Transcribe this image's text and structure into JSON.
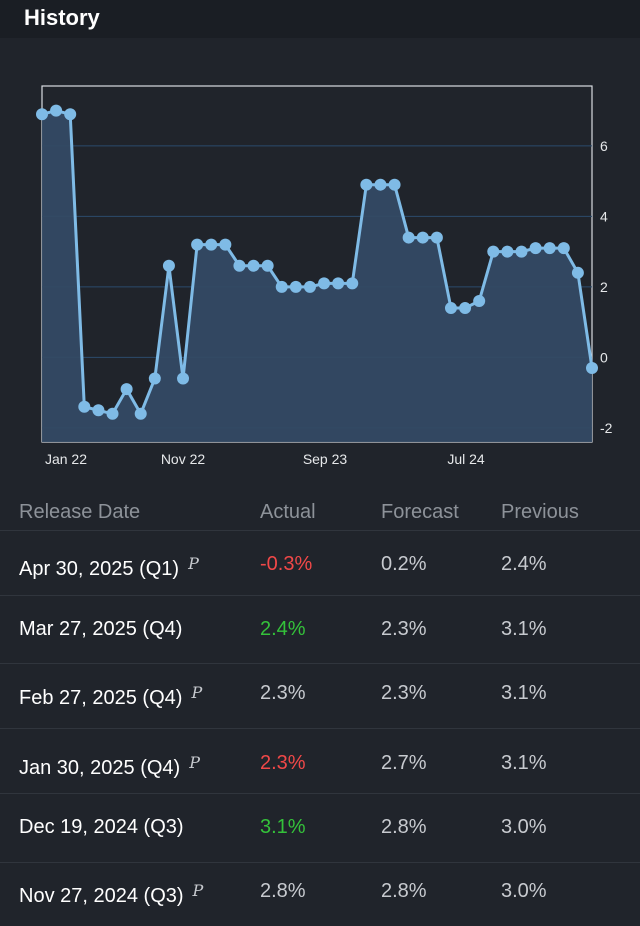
{
  "header": {
    "title": "History"
  },
  "colors": {
    "line": "#7fbbe6",
    "area": "#344a64",
    "grid": "#2b4b6c",
    "negative": "#f04848",
    "positive": "#34c23a"
  },
  "chart_data": {
    "type": "area",
    "y_ticks": [
      6,
      4,
      2,
      0,
      -2
    ],
    "x_labels": [
      "Jan 22",
      "Nov 22",
      "Sep 23",
      "Jul 24"
    ],
    "ylim": [
      -2.4,
      7.7
    ],
    "grid": true,
    "values": [
      6.9,
      7.0,
      6.9,
      -1.4,
      -1.5,
      -1.6,
      -0.9,
      -1.6,
      -0.6,
      2.6,
      -0.6,
      3.2,
      3.2,
      3.2,
      2.6,
      2.6,
      2.6,
      2.0,
      2.0,
      2.0,
      2.1,
      2.1,
      2.1,
      4.9,
      4.9,
      4.9,
      3.4,
      3.4,
      3.4,
      1.4,
      1.4,
      1.6,
      3.0,
      3.0,
      3.0,
      3.1,
      3.1,
      3.1,
      2.4,
      -0.3
    ]
  },
  "table": {
    "headers": [
      "Release Date",
      "Actual",
      "Forecast",
      "Previous"
    ],
    "prelim_marker": "P",
    "rows": [
      {
        "date": "Apr 30, 2025 (Q1)",
        "prelim": true,
        "actual": "-0.3%",
        "actual_status": "red",
        "forecast": "0.2%",
        "previous": "2.4%"
      },
      {
        "date": "Mar 27, 2025 (Q4)",
        "prelim": false,
        "actual": "2.4%",
        "actual_status": "green",
        "forecast": "2.3%",
        "previous": "3.1%"
      },
      {
        "date": "Feb 27, 2025 (Q4)",
        "prelim": true,
        "actual": "2.3%",
        "actual_status": "neutral",
        "forecast": "2.3%",
        "previous": "3.1%"
      },
      {
        "date": "Jan 30, 2025 (Q4)",
        "prelim": true,
        "actual": "2.3%",
        "actual_status": "red",
        "forecast": "2.7%",
        "previous": "3.1%"
      },
      {
        "date": "Dec 19, 2024 (Q3)",
        "prelim": false,
        "actual": "3.1%",
        "actual_status": "green",
        "forecast": "2.8%",
        "previous": "3.0%"
      },
      {
        "date": "Nov 27, 2024 (Q3)",
        "prelim": true,
        "actual": "2.8%",
        "actual_status": "neutral",
        "forecast": "2.8%",
        "previous": "3.0%"
      }
    ]
  }
}
